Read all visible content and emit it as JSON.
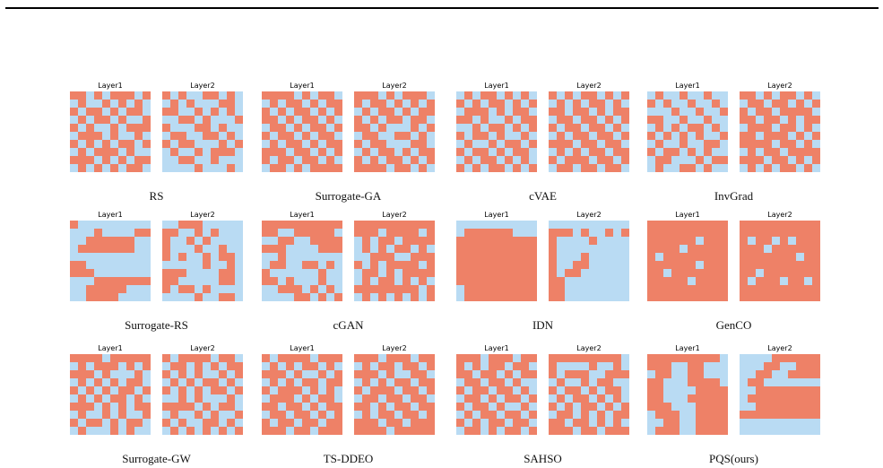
{
  "colors": {
    "filled": "#ee8167",
    "empty": "#b9dbf3"
  },
  "panels": [
    {
      "label": "RS",
      "layers": [
        {
          "title": "Layer1",
          "grid": [
            "1101011101",
            "0100101010",
            "1011010110",
            "0101101001",
            "1010010111",
            "0111010010",
            "1010101101",
            "0101110100",
            "1110101011",
            "0101010110"
          ]
        },
        {
          "title": "Layer2",
          "grid": [
            "1010011010",
            "0101000110",
            "1100101010",
            "0011010001",
            "1000110100",
            "0110011010",
            "1011000101",
            "0100101110",
            "0011001000",
            "0000100010"
          ]
        }
      ]
    },
    {
      "label": "Surrogate-GA",
      "layers": [
        {
          "title": "Layer1",
          "grid": [
            "1111010110",
            "0101101011",
            "1010110101",
            "1101011010",
            "0110101101",
            "1011010110",
            "0101101011",
            "1110110101",
            "1011011010",
            "0110101111"
          ]
        },
        {
          "title": "Layer2",
          "grid": [
            "1110101110",
            "1011010101",
            "0101101011",
            "1010110110",
            "1101000101",
            "0110011010",
            "1011000110",
            "0101101011",
            "1010110101",
            "1111011010"
          ]
        }
      ]
    },
    {
      "label": "cVAE",
      "layers": [
        {
          "title": "Layer1",
          "grid": [
            "0101101010",
            "1010110101",
            "0111010110",
            "1101001011",
            "0010110101",
            "1011010010",
            "0100101101",
            "1011010110",
            "0101101010",
            "1010110101"
          ]
        },
        {
          "title": "Layer2",
          "grid": [
            "1010110101",
            "0101011010",
            "1101101011",
            "0110110101",
            "1011011010",
            "0101101101",
            "1110110110",
            "0101011011",
            "1011101101",
            "0110110110"
          ]
        }
      ]
    },
    {
      "label": "InvGrad",
      "layers": [
        {
          "title": "Layer1",
          "grid": [
            "0100100100",
            "1010010010",
            "0001001001",
            "1100100100",
            "0101011010",
            "1010101001",
            "0100100110",
            "1011010100",
            "0110001011",
            "0100110100"
          ]
        },
        {
          "title": "Layer2",
          "grid": [
            "1101011010",
            "0110110101",
            "1011011110",
            "1101101011",
            "0111011010",
            "1101110101",
            "1111011010",
            "0101101111",
            "1110110101",
            "0101011010"
          ]
        }
      ]
    },
    {
      "label": "Surrogate-RS",
      "layers": [
        {
          "title": "Layer1",
          "grid": [
            "1000000000",
            "0001000011",
            "0011111100",
            "0111111100",
            "0000000000",
            "1100000000",
            "1110000000",
            "0001111111",
            "0011111000",
            "0011110000"
          ]
        },
        {
          "title": "Layer2",
          "grid": [
            "0011100000",
            "1100101000",
            "1001010000",
            "1000100100",
            "1010010110",
            "0000010010",
            "1110000110",
            "1100000110",
            "1011010000",
            "0000100110"
          ]
        }
      ]
    },
    {
      "label": "cGAN",
      "layers": [
        {
          "title": "Layer1",
          "grid": [
            "1111111111",
            "1100111110",
            "0011001111",
            "1110000111",
            "0010000000",
            "0110011010",
            "1000000100",
            "1101000100",
            "0011101010",
            "0000110101"
          ]
        },
        {
          "title": "Layer2",
          "grid": [
            "1111111111",
            "1110111101",
            "0101101111",
            "0101011010",
            "0011100111",
            "1010111101",
            "0110101111",
            "0101101010",
            "1111111101",
            "0101010101"
          ]
        }
      ]
    },
    {
      "label": "IDN",
      "layers": [
        {
          "title": "Layer1",
          "grid": [
            "0000000000",
            "0111111000",
            "1111111111",
            "1111111111",
            "1111111111",
            "1111111111",
            "1111111111",
            "1111111111",
            "0111111111",
            "0111111111"
          ]
        },
        {
          "title": "Layer2",
          "grid": [
            "0000000000",
            "1110100101",
            "1000010000",
            "1000000000",
            "1000100000",
            "1001100000",
            "1011000000",
            "1100000000",
            "1100000000",
            "1100000000"
          ]
        }
      ]
    },
    {
      "label": "GenCO",
      "layers": [
        {
          "title": "Layer1",
          "grid": [
            "1111111111",
            "1111111111",
            "1111110111",
            "1111011111",
            "1011111111",
            "1111110111",
            "1101111111",
            "1111101111",
            "1111111111",
            "1111111111"
          ]
        },
        {
          "title": "Layer2",
          "grid": [
            "1111111111",
            "1111111111",
            "1011010111",
            "1110111111",
            "1111111011",
            "1111111111",
            "1101111111",
            "1011101101",
            "1111111111",
            "1111111111"
          ]
        }
      ]
    },
    {
      "label": "Surrogate-GW",
      "layers": [
        {
          "title": "Layer1",
          "grid": [
            "1111011111",
            "0101110101",
            "1110100010",
            "0101010110",
            "1010101101",
            "0101011010",
            "1110101011",
            "0100101001",
            "1011010110",
            "0100010100"
          ]
        },
        {
          "title": "Layer2",
          "grid": [
            "1011110110",
            "0110101011",
            "1010100101",
            "0101011010",
            "1010101101",
            "0010100010",
            "1111010110",
            "0100101001",
            "1010011010",
            "0101010101"
          ]
        }
      ]
    },
    {
      "label": "TS-DDEO",
      "layers": [
        {
          "title": "Layer1",
          "grid": [
            "1011110111",
            "0101011010",
            "1110100101",
            "0101011011",
            "1011101010",
            "0111010110",
            "1101101011",
            "0110110101",
            "1011011011",
            "1110110111"
          ]
        },
        {
          "title": "Layer2",
          "grid": [
            "1110111011",
            "0101101101",
            "1110100110",
            "0101011011",
            "1011101101",
            "0110110110",
            "1101011011",
            "0101101101",
            "1110110111",
            "1111011111"
          ]
        }
      ]
    },
    {
      "label": "SAHSO",
      "layers": [
        {
          "title": "Layer1",
          "grid": [
            "1110111011",
            "1010110110",
            "1101101011",
            "0110110100",
            "1011011010",
            "0110101101",
            "1011010010",
            "0101101101",
            "1010110110",
            "0110101101"
          ]
        },
        {
          "title": "Layer2",
          "grid": [
            "1111111110",
            "1000010010",
            "1011100111",
            "0100101100",
            "1011010110",
            "0101101010",
            "1010110101",
            "0110101011",
            "1101101010",
            "1110110111"
          ]
        }
      ]
    },
    {
      "label": "PQS(ours)",
      "layers": [
        {
          "title": "Layer1",
          "grid": [
            "1111111110",
            "1110011000",
            "0110011000",
            "1100011110",
            "1100001111",
            "1100011111",
            "1110001111",
            "0111001111",
            "0011001111",
            "0111001111"
          ]
        },
        {
          "title": "Layer2",
          "grid": [
            "0000111111",
            "0001100111",
            "0011001111",
            "0110000000",
            "0011111111",
            "0111111111",
            "0011111111",
            "1111111111",
            "0000000000",
            "0000000000"
          ]
        }
      ]
    }
  ]
}
